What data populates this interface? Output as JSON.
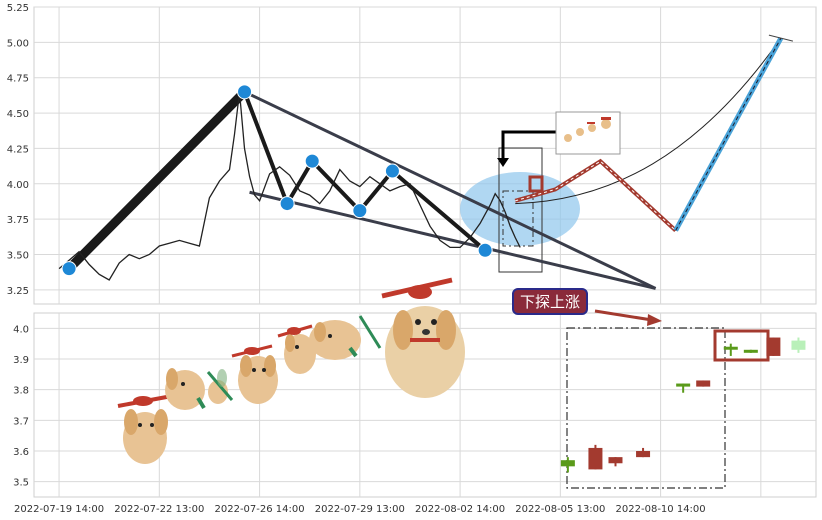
{
  "chart_data": [
    {
      "type": "line",
      "panel": "top",
      "ylim": [
        3.15,
        5.25
      ],
      "yticks": [
        "3.25",
        "3.50",
        "3.75",
        "4.00",
        "4.25",
        "4.50",
        "4.75",
        "5.00",
        "5.25"
      ],
      "ytick_values": [
        3.25,
        3.5,
        3.75,
        4.0,
        4.25,
        4.5,
        4.75,
        5.0,
        5.25
      ],
      "price_series": {
        "x": [
          0,
          0.4,
          0.8,
          1.2,
          1.6,
          2.0,
          2.4,
          2.8,
          3.2,
          3.6,
          4.0,
          4.4,
          4.8,
          5.2,
          5.6,
          6.0,
          6.4,
          6.8,
          7.0,
          7.2,
          7.4,
          7.6,
          7.8,
          8.0,
          8.4,
          8.8,
          9.2,
          9.6,
          10.0,
          10.4,
          10.8,
          11.2,
          11.6,
          12.0,
          12.4,
          12.8,
          13.2,
          13.6,
          14.0,
          14.4,
          14.8,
          15.2,
          15.6,
          16.0,
          16.4,
          16.8,
          17.2,
          17.4,
          17.6,
          17.8,
          18.0,
          18.2,
          18.4
        ],
        "y": [
          3.4,
          3.46,
          3.52,
          3.43,
          3.36,
          3.32,
          3.44,
          3.5,
          3.47,
          3.5,
          3.56,
          3.58,
          3.6,
          3.58,
          3.56,
          3.9,
          4.02,
          4.1,
          4.35,
          4.65,
          4.25,
          4.05,
          3.92,
          3.88,
          4.07,
          4.12,
          4.06,
          3.95,
          3.92,
          3.86,
          3.95,
          4.1,
          4.02,
          3.98,
          4.05,
          4.0,
          3.95,
          3.98,
          4.0,
          3.85,
          3.7,
          3.6,
          3.55,
          3.55,
          3.62,
          3.72,
          3.85,
          3.93,
          3.88,
          3.8,
          3.7,
          3.62,
          3.55
        ]
      },
      "zigzag": {
        "x": [
          0.4,
          7.4,
          9.1,
          10.1,
          12.0,
          13.3,
          17.0
        ],
        "y": [
          3.4,
          4.65,
          3.86,
          4.16,
          3.81,
          4.09,
          3.53
        ]
      },
      "upper_trendline": {
        "x": [
          7.4,
          23.8
        ],
        "y": [
          4.65,
          3.26
        ]
      },
      "lower_trendline": {
        "x": [
          7.6,
          23.8
        ],
        "y": [
          3.94,
          3.26
        ]
      },
      "forecast_path": {
        "x": [
          18.2,
          19.8,
          21.6,
          24.6,
          28.8
        ],
        "y": [
          3.88,
          3.96,
          4.16,
          3.67,
          5.03
        ]
      },
      "forecast_curve": {
        "x": [
          18.2,
          22.0,
          25.5,
          28.8
        ],
        "y": [
          3.86,
          3.88,
          4.2,
          5.03
        ]
      }
    },
    {
      "type": "candlestick",
      "panel": "bottom",
      "ylim": [
        3.45,
        4.05
      ],
      "yticks": [
        "3.5",
        "3.6",
        "3.7",
        "3.8",
        "3.9",
        "4.0"
      ],
      "ytick_values": [
        3.5,
        3.6,
        3.7,
        3.8,
        3.9,
        4.0
      ],
      "candles": [
        {
          "x": 20.3,
          "open": 3.57,
          "high": 3.58,
          "low": 3.53,
          "close": 3.55,
          "color": "#5a9a1a"
        },
        {
          "x": 21.4,
          "open": 3.61,
          "high": 3.62,
          "low": 3.54,
          "close": 3.54,
          "color": "#a33a2f"
        },
        {
          "x": 22.2,
          "open": 3.58,
          "high": 3.58,
          "low": 3.55,
          "close": 3.56,
          "color": "#a33a2f"
        },
        {
          "x": 23.3,
          "open": 3.6,
          "high": 3.61,
          "low": 3.58,
          "close": 3.58,
          "color": "#a33a2f"
        },
        {
          "x": 24.9,
          "open": 3.81,
          "high": 3.82,
          "low": 3.79,
          "close": 3.82,
          "color": "#5a9a1a"
        },
        {
          "x": 25.7,
          "open": 3.83,
          "high": 3.83,
          "low": 3.81,
          "close": 3.81,
          "color": "#a33a2f"
        },
        {
          "x": 26.8,
          "open": 3.94,
          "high": 3.95,
          "low": 3.91,
          "close": 3.94,
          "color": "#5a9a1a"
        },
        {
          "x": 27.6,
          "open": 3.93,
          "high": 3.93,
          "low": 3.92,
          "close": 3.93,
          "color": "#5a9a1a"
        },
        {
          "x": 28.5,
          "open": 3.97,
          "high": 3.97,
          "low": 3.91,
          "close": 3.91,
          "color": "#a33a2f"
        },
        {
          "x": 29.5,
          "open": 3.96,
          "high": 3.97,
          "low": 3.92,
          "close": 3.93,
          "color": "#b9f0b9"
        }
      ]
    }
  ],
  "x_axis": {
    "xlim": [
      -1.0,
      30.2
    ],
    "ticks": [
      {
        "label": "2022-07-19 14:00",
        "x": 0.0
      },
      {
        "label": "2022-07-22 13:00",
        "x": 4.0
      },
      {
        "label": "2022-07-26 14:00",
        "x": 8.0
      },
      {
        "label": "2022-07-29 13:00",
        "x": 12.0
      },
      {
        "label": "2022-08-02 14:00",
        "x": 16.0
      },
      {
        "label": "2022-08-05 13:00",
        "x": 20.0
      },
      {
        "label": "2022-08-10 14:00",
        "x": 24.0
      }
    ],
    "extra_gridline": 28.0
  },
  "annotations": {
    "callout_text": "下探上涨",
    "colors": {
      "price_line": "#222222",
      "zigzag": "#1a1a1a",
      "pivot_dot": "#1e88d6",
      "trendline": "#3a3d4a",
      "forecast": "#a33a2f",
      "forecast_rise": "#4aa3d8",
      "ellipse": "#8fc6ec",
      "callout_bg": "#8a2a3a",
      "callout_border": "#2a2a8a",
      "grid": "#d9d9d9"
    }
  }
}
